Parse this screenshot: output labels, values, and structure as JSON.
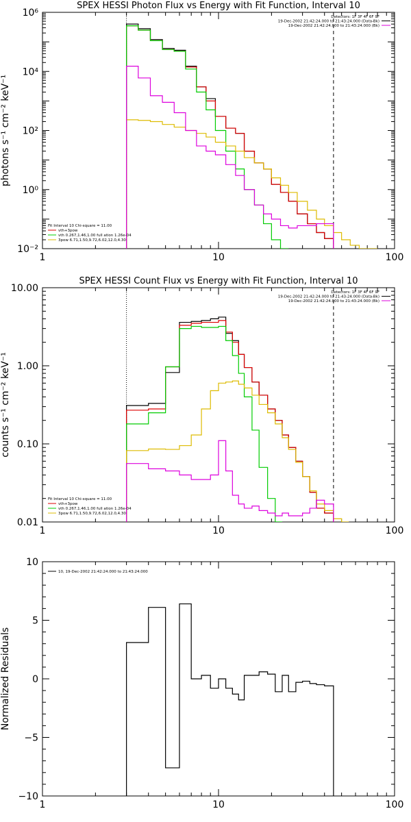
{
  "colors": {
    "black": "#000000",
    "red": "#dd0000",
    "green": "#00cc00",
    "magenta": "#dd00dd",
    "gold": "#ddbb00"
  },
  "chart_data": [
    {
      "type": "line",
      "title": "SPEX HESSI Photon Flux vs Energy with Fit Function, Interval 10",
      "ylabel": "photons s⁻¹ cm⁻² keV⁻¹",
      "xlabel": "",
      "xscale": "log",
      "yscale": "log",
      "xlim": [
        1,
        100
      ],
      "ylim": [
        0.01,
        1000000
      ],
      "xticks": [
        {
          "v": 1,
          "label": "1"
        },
        {
          "v": 10,
          "label": "10"
        },
        {
          "v": 100,
          "label": "100"
        }
      ],
      "yticks": [
        {
          "v": 0.01,
          "label": "10⁻²"
        },
        {
          "v": 1,
          "label": "10⁰"
        },
        {
          "v": 100,
          "label": "10²"
        },
        {
          "v": 10000,
          "label": "10⁴"
        },
        {
          "v": 1000000,
          "label": "10⁶"
        }
      ],
      "vlines": [
        {
          "x": 3.0,
          "style": "dotted"
        },
        {
          "x": 45,
          "style": "dashed"
        }
      ],
      "header_lines": [
        "Detectors: 1F 3F 4F 6F 9F",
        "19-Dec-2002 21:42:24.000 to 21:43:24.000 (Data-Bk)",
        "19-Dec-2002 21:42:24.000 to 21:43:24.000 (Bk)"
      ],
      "header_colors": [
        "",
        "#000000",
        "#dd00dd"
      ],
      "legend_title": "Fit Interval 10    Chi-square = 11.00",
      "legend": [
        {
          "name": "vth+3pow",
          "color": "#dd0000"
        },
        {
          "name": "vth 0.267,1.46,1.00  full ation 1.26e-04",
          "color": "#00cc00"
        },
        {
          "name": "3pow 6.71,1.50,9.72,6.02,12.0,4.30",
          "color": "#ddbb00"
        }
      ],
      "series": [
        {
          "name": "Data-Bk",
          "color": "#000000",
          "edges": [
            3.0,
            3.5,
            4.1,
            4.8,
            5.6,
            6.5,
            7.5,
            8.5,
            9.6,
            11,
            12.5,
            14,
            16,
            18,
            20,
            22.5,
            25,
            28,
            32,
            36,
            40,
            45
          ],
          "values": [
            400000,
            280000,
            120000,
            60000,
            52000,
            15000,
            3000,
            1200,
            300,
            120,
            80,
            20,
            8,
            5,
            1.5,
            0.8,
            0.4,
            0.15,
            0.07,
            0.035,
            0.022
          ]
        },
        {
          "name": "vth+3pow",
          "color": "#dd0000",
          "edges": [
            3.0,
            3.5,
            4.1,
            4.8,
            5.6,
            6.5,
            7.5,
            8.5,
            9.6,
            11,
            12.5,
            14,
            16,
            18,
            20,
            22.5,
            25,
            28,
            32,
            36,
            40,
            45
          ],
          "values": [
            350000,
            250000,
            110000,
            55000,
            48000,
            14000,
            3000,
            1000,
            300,
            120,
            80,
            20,
            8,
            5,
            1.5,
            0.8,
            0.4,
            0.15,
            0.07,
            0.035,
            0.022
          ]
        },
        {
          "name": "vth",
          "color": "#00cc00",
          "edges": [
            3.0,
            3.5,
            4.1,
            4.8,
            5.6,
            6.5,
            7.5,
            8.5,
            9.6,
            11,
            12.5,
            14,
            16,
            18,
            20,
            22.5,
            25
          ],
          "values": [
            350000,
            250000,
            110000,
            55000,
            48000,
            12000,
            2000,
            500,
            100,
            20,
            5,
            1,
            0.3,
            0.07,
            0.02,
            0.01
          ]
        },
        {
          "name": "3pow",
          "color": "#ddbb00",
          "edges": [
            3.0,
            3.5,
            4.1,
            4.8,
            5.6,
            6.5,
            7.5,
            8.5,
            9.6,
            11,
            12.5,
            14,
            16,
            18,
            20,
            22.5,
            25,
            28,
            32,
            36,
            40,
            45,
            50,
            56,
            63,
            70,
            80
          ],
          "values": [
            230,
            220,
            200,
            160,
            130,
            100,
            80,
            60,
            40,
            30,
            20,
            12,
            8,
            5,
            2.5,
            1.4,
            0.8,
            0.4,
            0.2,
            0.1,
            0.06,
            0.035,
            0.02,
            0.013,
            0.009,
            0.007
          ]
        },
        {
          "name": "Bk",
          "color": "#dd00dd",
          "edges": [
            3.0,
            3.5,
            4.1,
            4.8,
            5.6,
            6.5,
            7.5,
            8.5,
            9.6,
            11,
            12.5,
            14,
            16,
            18,
            20,
            22.5,
            25,
            28,
            32,
            36,
            40,
            45
          ],
          "values": [
            15000,
            6000,
            1500,
            900,
            400,
            100,
            30,
            20,
            15,
            7,
            3,
            1,
            0.3,
            0.15,
            0.1,
            0.06,
            0.05,
            0.06,
            0.06,
            0.07,
            0.07
          ]
        }
      ]
    },
    {
      "type": "line",
      "title": "SPEX HESSI Count Flux vs Energy with Fit Function, Interval 10",
      "ylabel": "counts s⁻¹ cm⁻² keV⁻¹",
      "xlabel": "",
      "xscale": "log",
      "yscale": "log",
      "xlim": [
        1,
        100
      ],
      "ylim": [
        0.01,
        10
      ],
      "xticks": [
        {
          "v": 1,
          "label": "1"
        },
        {
          "v": 10,
          "label": "10"
        },
        {
          "v": 100,
          "label": "100"
        }
      ],
      "yticks": [
        {
          "v": 0.01,
          "label": "0.01"
        },
        {
          "v": 0.1,
          "label": "0.10"
        },
        {
          "v": 1,
          "label": "1.00"
        },
        {
          "v": 10,
          "label": "10.00"
        }
      ],
      "vlines": [
        {
          "x": 3.0,
          "style": "dotted"
        },
        {
          "x": 45,
          "style": "dashed"
        }
      ],
      "header_lines": [
        "Detectors: 1F 3F 4F 6F 9F",
        "19-Dec-2002 21:42:24.000 to 21:43:24.000 (Data-Bk)",
        "19-Dec-2002 21:42:24.000 to 21:43:24.000 (Bk)"
      ],
      "header_colors": [
        "",
        "#000000",
        "#dd00dd"
      ],
      "legend_title": "Fit Interval 10    Chi-square = 11.00",
      "legend": [
        {
          "name": "vth+3pow",
          "color": "#dd0000"
        },
        {
          "name": "vth 0.267,1.46,1.00  full ation 1.26e-04",
          "color": "#00cc00"
        },
        {
          "name": "3pow 6.71,1.50,9.72,6.02,12.0,4.30",
          "color": "#ddbb00"
        }
      ],
      "series": [
        {
          "name": "Data-Bk",
          "color": "#000000",
          "edges": [
            3.0,
            4.0,
            5.0,
            6.0,
            7.0,
            8.0,
            9.0,
            10.0,
            11.0,
            12.0,
            13.0,
            14.0,
            15.5,
            17,
            19,
            21,
            23,
            25,
            27.5,
            30,
            33,
            36,
            40,
            45
          ],
          "values": [
            0.31,
            0.33,
            0.82,
            3.6,
            3.7,
            3.8,
            4.0,
            4.2,
            2.6,
            2.1,
            1.4,
            0.95,
            0.62,
            0.42,
            0.28,
            0.2,
            0.13,
            0.09,
            0.06,
            0.038,
            0.024,
            0.015,
            0.013
          ]
        },
        {
          "name": "vth+3pow",
          "color": "#dd0000",
          "edges": [
            3.0,
            4.0,
            5.0,
            6.0,
            7.0,
            8.0,
            9.0,
            10.0,
            11.0,
            12.0,
            13.0,
            14.0,
            15.5,
            17,
            19,
            21,
            23,
            25,
            27.5,
            30,
            33,
            36,
            40,
            45
          ],
          "values": [
            0.27,
            0.28,
            0.97,
            3.3,
            3.5,
            3.6,
            3.6,
            3.8,
            2.7,
            2.0,
            1.4,
            0.95,
            0.62,
            0.42,
            0.28,
            0.2,
            0.13,
            0.09,
            0.06,
            0.038,
            0.024,
            0.015,
            0.013
          ]
        },
        {
          "name": "vth",
          "color": "#00cc00",
          "edges": [
            3.0,
            4.0,
            5.0,
            6.0,
            7.0,
            8.0,
            9.0,
            10.0,
            11.0,
            12.0,
            13.0,
            14.0,
            15.5,
            17,
            19,
            21,
            23
          ],
          "values": [
            0.18,
            0.25,
            0.97,
            3.0,
            3.2,
            3.1,
            3.1,
            3.2,
            2.1,
            1.35,
            0.8,
            0.4,
            0.15,
            0.05,
            0.02,
            0.01
          ]
        },
        {
          "name": "3pow",
          "color": "#ddbb00",
          "edges": [
            3.0,
            4.0,
            5.0,
            6.0,
            7.0,
            8.0,
            9.0,
            10.0,
            11.0,
            12.0,
            13.0,
            14.0,
            15.5,
            17,
            19,
            21,
            23,
            25,
            27.5,
            30,
            33,
            36,
            40,
            45,
            50,
            55
          ],
          "values": [
            0.082,
            0.086,
            0.085,
            0.095,
            0.13,
            0.28,
            0.48,
            0.6,
            0.62,
            0.64,
            0.58,
            0.52,
            0.42,
            0.32,
            0.25,
            0.18,
            0.12,
            0.085,
            0.058,
            0.038,
            0.025,
            0.017,
            0.014,
            0.011,
            0.01
          ]
        },
        {
          "name": "Bk",
          "color": "#dd00dd",
          "edges": [
            3.0,
            4.0,
            5.0,
            6.0,
            7.0,
            8.0,
            9.0,
            10.0,
            11.0,
            12.0,
            13.0,
            14.0,
            15.5,
            17,
            19,
            21,
            23,
            25,
            27.5,
            30,
            33,
            36,
            40,
            45
          ],
          "values": [
            0.056,
            0.048,
            0.045,
            0.04,
            0.035,
            0.035,
            0.04,
            0.11,
            0.045,
            0.022,
            0.017,
            0.015,
            0.016,
            0.014,
            0.013,
            0.012,
            0.013,
            0.012,
            0.012,
            0.013,
            0.015,
            0.019,
            0.017
          ]
        }
      ]
    },
    {
      "type": "line",
      "title": "",
      "ylabel": "Normalized Residuals",
      "xlabel": "",
      "xscale": "log",
      "yscale": "linear",
      "xlim": [
        1,
        100
      ],
      "ylim": [
        -10,
        10
      ],
      "xticks": [
        {
          "v": 1,
          "label": "1"
        },
        {
          "v": 10,
          "label": "10"
        },
        {
          "v": 100,
          "label": "100"
        }
      ],
      "yticks": [
        {
          "v": -10,
          "label": "−10"
        },
        {
          "v": -5,
          "label": "−5"
        },
        {
          "v": 0,
          "label": "0"
        },
        {
          "v": 5,
          "label": "5"
        },
        {
          "v": 10,
          "label": "10"
        }
      ],
      "legend": [
        {
          "name": "10, 19-Dec-2002 21:42:24.000 to 21:43:24.000",
          "color": "#000000"
        }
      ],
      "series": [
        {
          "name": "10, 19-Dec-2002 21:42:24.000 to 21:43:24.000",
          "color": "#000000",
          "edges": [
            3.0,
            4.0,
            5.0,
            6.0,
            7.0,
            8.0,
            9.0,
            10.0,
            11.0,
            12.0,
            13.0,
            14.0,
            15.5,
            17,
            19,
            21,
            23,
            25,
            27.5,
            30,
            33,
            36,
            40,
            45
          ],
          "values": [
            3.1,
            6.1,
            -7.6,
            6.4,
            0.0,
            0.3,
            -0.8,
            0.0,
            -0.8,
            -1.3,
            -1.8,
            0.3,
            0.3,
            0.6,
            0.4,
            -1.1,
            0.3,
            -1.1,
            -0.3,
            -0.2,
            -0.4,
            -0.5,
            -0.6
          ],
          "drop_ends": true
        }
      ]
    }
  ]
}
